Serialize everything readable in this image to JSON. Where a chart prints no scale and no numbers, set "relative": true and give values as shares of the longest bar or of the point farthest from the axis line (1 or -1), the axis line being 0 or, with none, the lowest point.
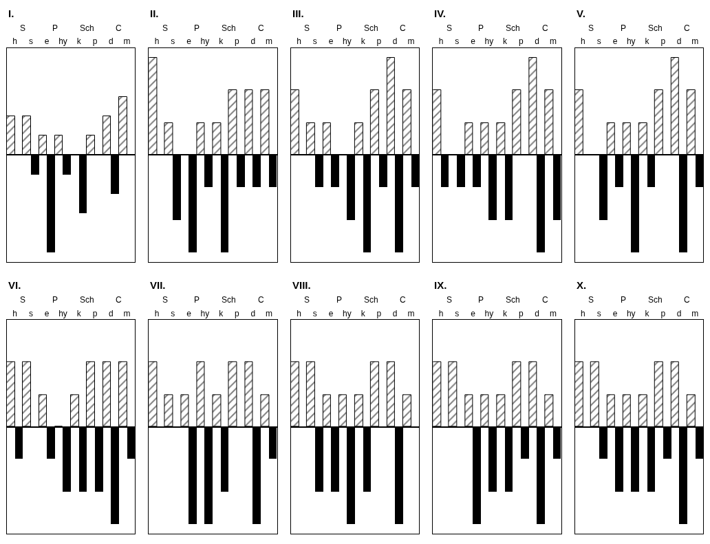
{
  "chart_data": [
    {
      "type": "bar",
      "title": "I.",
      "categories": [
        "h",
        "s",
        "e",
        "hy",
        "k",
        "p",
        "d",
        "m"
      ],
      "annotations": [
        "S",
        "P",
        "Sch",
        "C"
      ],
      "relative": true,
      "series": [
        {
          "color": "#000000",
          "values": [
            0.4,
            0.4,
            0.2,
            0.2,
            0,
            0.2,
            0.4,
            0.6
          ]
        },
        {
          "color": "#000000",
          "values": [
            0,
            -0.2,
            -1,
            -0.2,
            -0.6,
            0,
            -0.4,
            0
          ]
        }
      ]
    },
    {
      "type": "bar",
      "title": "II.",
      "categories": [
        "h",
        "s",
        "e",
        "hy",
        "k",
        "p",
        "d",
        "m"
      ],
      "annotations": [
        "S",
        "P",
        "Sch",
        "C"
      ],
      "relative": true,
      "series": [
        {
          "color": "#000000",
          "values": [
            1,
            0.33,
            0,
            0.33,
            0.33,
            0.67,
            0.67,
            0.67
          ]
        },
        {
          "color": "#000000",
          "values": [
            0,
            -0.67,
            -1,
            -0.33,
            -1,
            -0.33,
            -0.33,
            -0.33
          ]
        }
      ]
    },
    {
      "type": "bar",
      "title": "III.",
      "categories": [
        "h",
        "s",
        "e",
        "hy",
        "k",
        "p",
        "d",
        "m"
      ],
      "annotations": [
        "S",
        "P",
        "Sch",
        "C"
      ],
      "relative": true,
      "series": [
        {
          "color": "#000000",
          "values": [
            0.67,
            0.33,
            0.33,
            0,
            0.33,
            0.67,
            1,
            0.67
          ]
        },
        {
          "color": "#000000",
          "values": [
            0,
            -0.33,
            -0.33,
            -0.67,
            -1,
            -0.33,
            -1,
            -0.33
          ]
        }
      ]
    },
    {
      "type": "bar",
      "title": "IV.",
      "categories": [
        "h",
        "s",
        "e",
        "hy",
        "k",
        "p",
        "d",
        "m"
      ],
      "annotations": [
        "S",
        "P",
        "Sch",
        "C"
      ],
      "relative": true,
      "series": [
        {
          "color": "#000000",
          "values": [
            0.67,
            0,
            0.33,
            0.33,
            0.33,
            0.67,
            1,
            0.67
          ]
        },
        {
          "color": "#000000",
          "values": [
            -0.33,
            -0.33,
            -0.33,
            -0.67,
            -0.67,
            0,
            -1,
            -0.67
          ]
        }
      ]
    },
    {
      "type": "bar",
      "title": "V.",
      "categories": [
        "h",
        "s",
        "e",
        "hy",
        "k",
        "p",
        "d",
        "m"
      ],
      "annotations": [
        "S",
        "P",
        "Sch",
        "C"
      ],
      "relative": true,
      "series": [
        {
          "color": "#000000",
          "values": [
            0.67,
            0,
            0.33,
            0.33,
            0.33,
            0.67,
            1,
            0.67
          ]
        },
        {
          "color": "#000000",
          "values": [
            0,
            -0.67,
            -0.33,
            -1,
            -0.33,
            0,
            -1,
            -0.33
          ]
        }
      ]
    },
    {
      "type": "bar",
      "title": "VI.",
      "categories": [
        "h",
        "s",
        "e",
        "hy",
        "k",
        "p",
        "d",
        "m"
      ],
      "annotations": [
        "S",
        "P",
        "Sch",
        "C"
      ],
      "relative": true,
      "series": [
        {
          "color": "#000000",
          "values": [
            0.67,
            0.67,
            0.33,
            0,
            0.33,
            0.67,
            0.67,
            0.67
          ]
        },
        {
          "color": "#000000",
          "values": [
            -0.33,
            0,
            -0.33,
            -0.67,
            -0.67,
            -0.67,
            -1,
            -0.33
          ]
        }
      ]
    },
    {
      "type": "bar",
      "title": "VII.",
      "categories": [
        "h",
        "s",
        "e",
        "hy",
        "k",
        "p",
        "d",
        "m"
      ],
      "annotations": [
        "S",
        "P",
        "Sch",
        "C"
      ],
      "relative": true,
      "series": [
        {
          "color": "#000000",
          "values": [
            0.67,
            0.33,
            0.33,
            0.67,
            0.33,
            0.67,
            0.67,
            0.33
          ]
        },
        {
          "color": "#000000",
          "values": [
            0,
            0,
            -1,
            -1,
            -0.67,
            0,
            -1,
            -0.33
          ]
        }
      ]
    },
    {
      "type": "bar",
      "title": "VIII.",
      "categories": [
        "h",
        "s",
        "e",
        "hy",
        "k",
        "p",
        "d",
        "m"
      ],
      "annotations": [
        "S",
        "P",
        "Sch",
        "C"
      ],
      "relative": true,
      "series": [
        {
          "color": "#000000",
          "values": [
            0.67,
            0.67,
            0.33,
            0.33,
            0.33,
            0.67,
            0.67,
            0.33
          ]
        },
        {
          "color": "#000000",
          "values": [
            0,
            -0.67,
            -0.67,
            -1,
            -0.67,
            0,
            -1,
            0
          ]
        }
      ]
    },
    {
      "type": "bar",
      "title": "IX.",
      "categories": [
        "h",
        "s",
        "e",
        "hy",
        "k",
        "p",
        "d",
        "m"
      ],
      "annotations": [
        "S",
        "P",
        "Sch",
        "C"
      ],
      "relative": true,
      "series": [
        {
          "color": "#000000",
          "values": [
            0.67,
            0.67,
            0.33,
            0.33,
            0.33,
            0.67,
            0.67,
            0.33
          ]
        },
        {
          "color": "#000000",
          "values": [
            0,
            0,
            -1,
            -0.67,
            -0.67,
            -0.33,
            -1,
            -0.33
          ]
        }
      ]
    },
    {
      "type": "bar",
      "title": "X.",
      "categories": [
        "h",
        "s",
        "e",
        "hy",
        "k",
        "p",
        "d",
        "m"
      ],
      "annotations": [
        "S",
        "P",
        "Sch",
        "C"
      ],
      "relative": true,
      "series": [
        {
          "color": "#000000",
          "values": [
            0.67,
            0.67,
            0.33,
            0.33,
            0.33,
            0.67,
            0.67,
            0.33
          ]
        },
        {
          "color": "#000000",
          "values": [
            0,
            -0.33,
            -0.67,
            -0.67,
            -0.67,
            -0.33,
            -1,
            -0.33
          ]
        }
      ]
    }
  ]
}
